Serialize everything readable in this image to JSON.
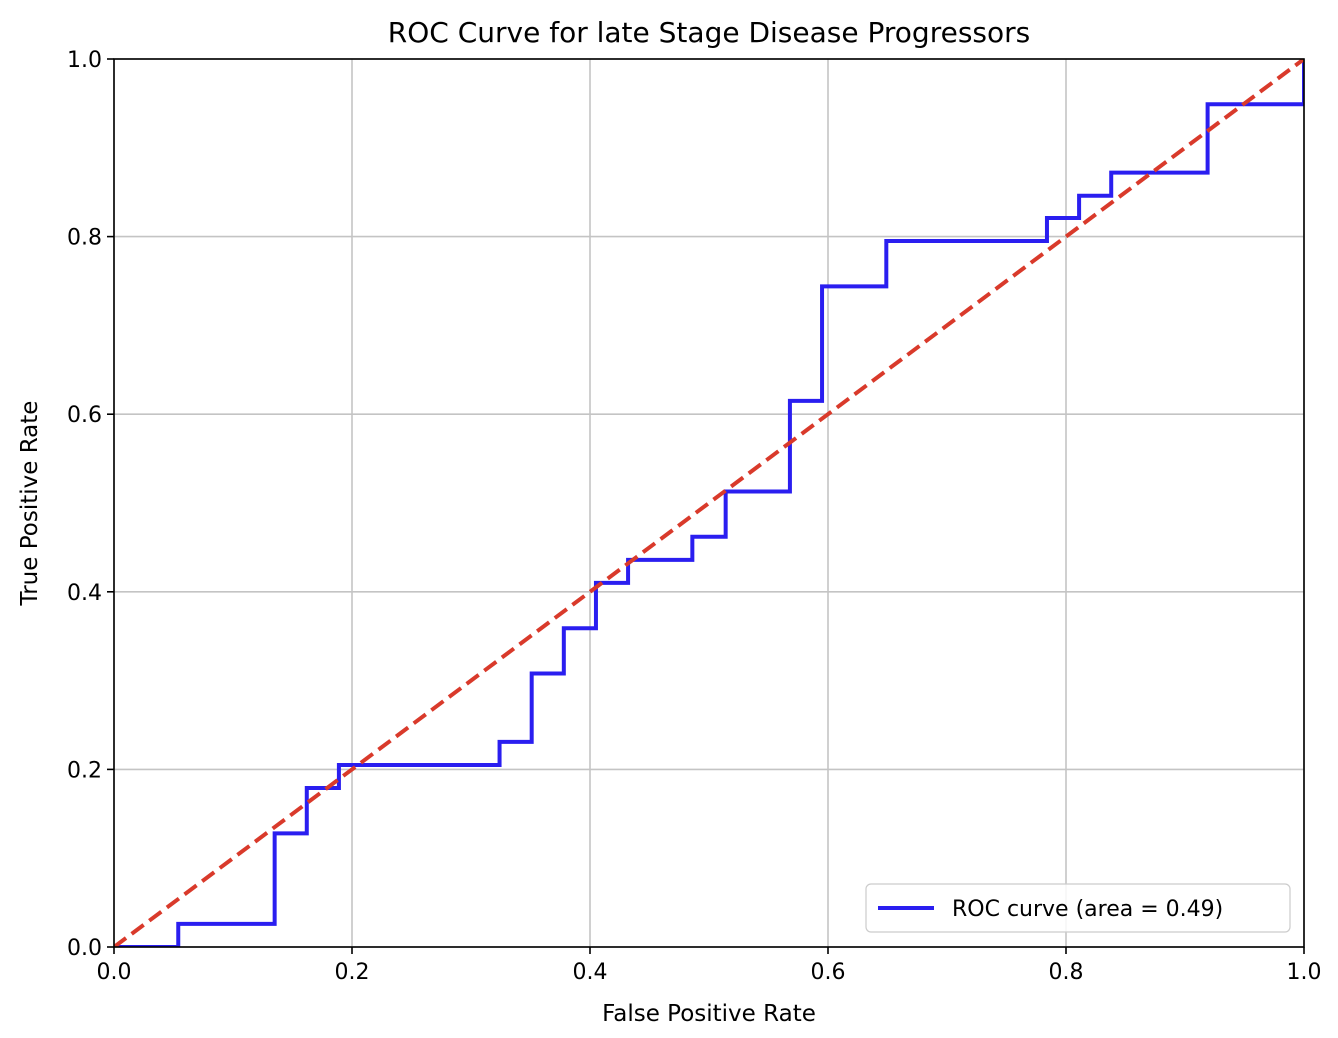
{
  "chart_data": {
    "type": "line",
    "title": "ROC Curve for late Stage Disease Progressors",
    "xlabel": "False Positive Rate",
    "ylabel": "True Positive Rate",
    "xlim": [
      0.0,
      1.0
    ],
    "ylim": [
      0.0,
      1.0
    ],
    "xticks": [
      "0.0",
      "0.2",
      "0.4",
      "0.6",
      "0.8",
      "1.0"
    ],
    "yticks": [
      "0.0",
      "0.2",
      "0.4",
      "0.6",
      "0.8",
      "1.0"
    ],
    "grid": true,
    "legend_position": "lower-right",
    "series": [
      {
        "name": "ROC curve (area = 0.49)",
        "style": "step",
        "color": "#2a1ef0",
        "x": [
          0.0,
          0.054,
          0.054,
          0.135,
          0.135,
          0.162,
          0.162,
          0.189,
          0.189,
          0.324,
          0.324,
          0.351,
          0.351,
          0.378,
          0.378,
          0.405,
          0.405,
          0.432,
          0.432,
          0.486,
          0.486,
          0.514,
          0.514,
          0.568,
          0.568,
          0.595,
          0.595,
          0.649,
          0.649,
          0.784,
          0.784,
          0.811,
          0.811,
          0.838,
          0.838,
          0.919,
          0.919,
          1.0,
          1.0
        ],
        "y": [
          0.0,
          0.0,
          0.026,
          0.026,
          0.128,
          0.128,
          0.179,
          0.179,
          0.205,
          0.205,
          0.231,
          0.231,
          0.308,
          0.308,
          0.359,
          0.359,
          0.41,
          0.41,
          0.436,
          0.436,
          0.462,
          0.462,
          0.513,
          0.513,
          0.615,
          0.615,
          0.744,
          0.744,
          0.795,
          0.795,
          0.821,
          0.821,
          0.846,
          0.846,
          0.872,
          0.872,
          0.949,
          0.949,
          1.0
        ]
      },
      {
        "name": "",
        "style": "dashed",
        "color": "#d93a2b",
        "x": [
          0.0,
          1.0
        ],
        "y": [
          0.0,
          1.0
        ]
      }
    ]
  }
}
